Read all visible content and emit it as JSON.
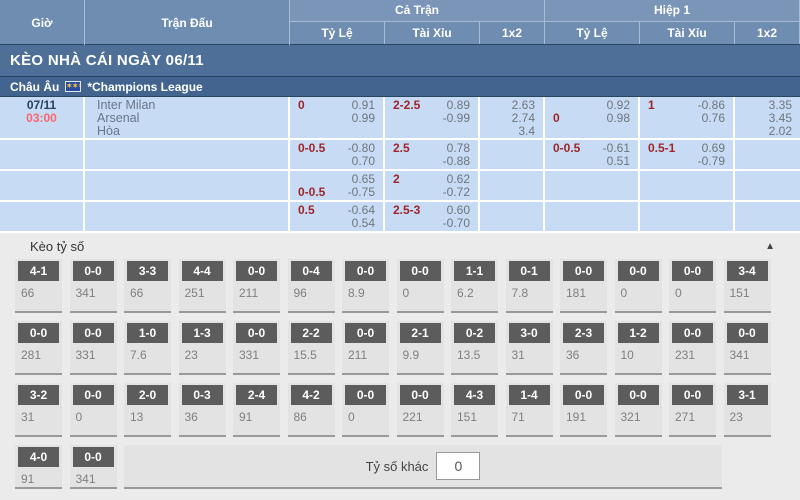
{
  "colors": {
    "header_blue": "#6f8db1",
    "banner_blue": "#4e7098",
    "league_blue": "#42648e",
    "odds_cell_blue": "#c8dbf4",
    "handicap_red": "#9e2428",
    "time_red": "#f9676d",
    "score_label_gray": "#5c5c5c"
  },
  "header": {
    "col_time": "Giờ",
    "col_match": "Trận Đấu",
    "group_full": "Cả Trận",
    "group_half": "Hiệp 1",
    "sub_cols": [
      "Tỷ Lệ",
      "Tài Xỉu",
      "1x2"
    ]
  },
  "banner": {
    "title": "KÈO NHÀ CÁI NGÀY 06/11"
  },
  "league": {
    "region": "Châu Âu",
    "flag": "eu-flag-icon",
    "name": "*Champions League"
  },
  "match": {
    "date": "07/11",
    "time": "03:00",
    "teams": [
      "Inter Milan",
      "Arsenal",
      "Hòa"
    ]
  },
  "odds_rows": [
    {
      "full_hdp": [
        {
          "l": "0",
          "v": "0.91"
        },
        {
          "l": "",
          "v": "0.99"
        }
      ],
      "full_ou": [
        {
          "l": "2-2.5",
          "v": "0.89"
        },
        {
          "l": "",
          "v": "-0.99"
        }
      ],
      "full_1x2": [
        "2.63",
        "2.74",
        "3.4"
      ],
      "half_hdp": [
        {
          "l": "",
          "v": "0.92"
        },
        {
          "l": "0",
          "v": "0.98"
        }
      ],
      "half_ou": [
        {
          "l": "1",
          "v": "-0.86"
        },
        {
          "l": "",
          "v": "0.76"
        }
      ],
      "half_1x2": [
        "3.35",
        "3.45",
        "2.02"
      ]
    },
    {
      "full_hdp": [
        {
          "l": "0-0.5",
          "v": "-0.80"
        },
        {
          "l": "",
          "v": "0.70"
        }
      ],
      "full_ou": [
        {
          "l": "2.5",
          "v": "0.78"
        },
        {
          "l": "",
          "v": "-0.88"
        }
      ],
      "full_1x2": [],
      "half_hdp": [
        {
          "l": "0-0.5",
          "v": "-0.61"
        },
        {
          "l": "",
          "v": "0.51"
        }
      ],
      "half_ou": [
        {
          "l": "0.5-1",
          "v": "0.69"
        },
        {
          "l": "",
          "v": "-0.79"
        }
      ],
      "half_1x2": []
    },
    {
      "full_hdp": [
        {
          "l": "",
          "v": "0.65"
        },
        {
          "l": "0-0.5",
          "v": "-0.75"
        }
      ],
      "full_ou": [
        {
          "l": "2",
          "v": "0.62"
        },
        {
          "l": "",
          "v": "-0.72"
        }
      ],
      "full_1x2": [],
      "half_hdp": [],
      "half_ou": [],
      "half_1x2": []
    },
    {
      "full_hdp": [
        {
          "l": "0.5",
          "v": "-0.64"
        },
        {
          "l": "",
          "v": "0.54"
        }
      ],
      "full_ou": [
        {
          "l": "2.5-3",
          "v": "0.60"
        },
        {
          "l": "",
          "v": "-0.70"
        }
      ],
      "full_1x2": [],
      "half_hdp": [],
      "half_ou": [],
      "half_1x2": []
    }
  ],
  "score_section": {
    "title": "Kèo tỷ số",
    "collapse_icon": "▲",
    "rows": [
      [
        {
          "score": "4-1",
          "odds": "66"
        },
        {
          "score": "0-0",
          "odds": "341"
        },
        {
          "score": "3-3",
          "odds": "66"
        },
        {
          "score": "4-4",
          "odds": "251"
        },
        {
          "score": "0-0",
          "odds": "211"
        },
        {
          "score": "0-4",
          "odds": "96"
        },
        {
          "score": "0-0",
          "odds": "8.9"
        },
        {
          "score": "0-0",
          "odds": "0"
        },
        {
          "score": "1-1",
          "odds": "6.2"
        },
        {
          "score": "0-1",
          "odds": "7.8"
        },
        {
          "score": "0-0",
          "odds": "181"
        },
        {
          "score": "0-0",
          "odds": "0"
        },
        {
          "score": "0-0",
          "odds": "0"
        },
        {
          "score": "3-4",
          "odds": "151"
        }
      ],
      [
        {
          "score": "0-0",
          "odds": "281"
        },
        {
          "score": "0-0",
          "odds": "331"
        },
        {
          "score": "1-0",
          "odds": "7.6"
        },
        {
          "score": "1-3",
          "odds": "23"
        },
        {
          "score": "0-0",
          "odds": "331"
        },
        {
          "score": "2-2",
          "odds": "15.5"
        },
        {
          "score": "0-0",
          "odds": "211"
        },
        {
          "score": "2-1",
          "odds": "9.9"
        },
        {
          "score": "0-2",
          "odds": "13.5"
        },
        {
          "score": "3-0",
          "odds": "31"
        },
        {
          "score": "2-3",
          "odds": "36"
        },
        {
          "score": "1-2",
          "odds": "10"
        },
        {
          "score": "0-0",
          "odds": "231"
        },
        {
          "score": "0-0",
          "odds": "341"
        }
      ],
      [
        {
          "score": "3-2",
          "odds": "31"
        },
        {
          "score": "0-0",
          "odds": "0"
        },
        {
          "score": "2-0",
          "odds": "13"
        },
        {
          "score": "0-3",
          "odds": "36"
        },
        {
          "score": "2-4",
          "odds": "91"
        },
        {
          "score": "4-2",
          "odds": "86"
        },
        {
          "score": "0-0",
          "odds": "0"
        },
        {
          "score": "0-0",
          "odds": "221"
        },
        {
          "score": "4-3",
          "odds": "151"
        },
        {
          "score": "1-4",
          "odds": "71"
        },
        {
          "score": "0-0",
          "odds": "191"
        },
        {
          "score": "0-0",
          "odds": "321"
        },
        {
          "score": "0-0",
          "odds": "271"
        },
        {
          "score": "3-1",
          "odds": "23"
        }
      ],
      [
        {
          "score": "4-0",
          "odds": "91"
        },
        {
          "score": "0-0",
          "odds": "341"
        }
      ]
    ],
    "other_label": "Tỷ số khác",
    "other_value": "0"
  }
}
